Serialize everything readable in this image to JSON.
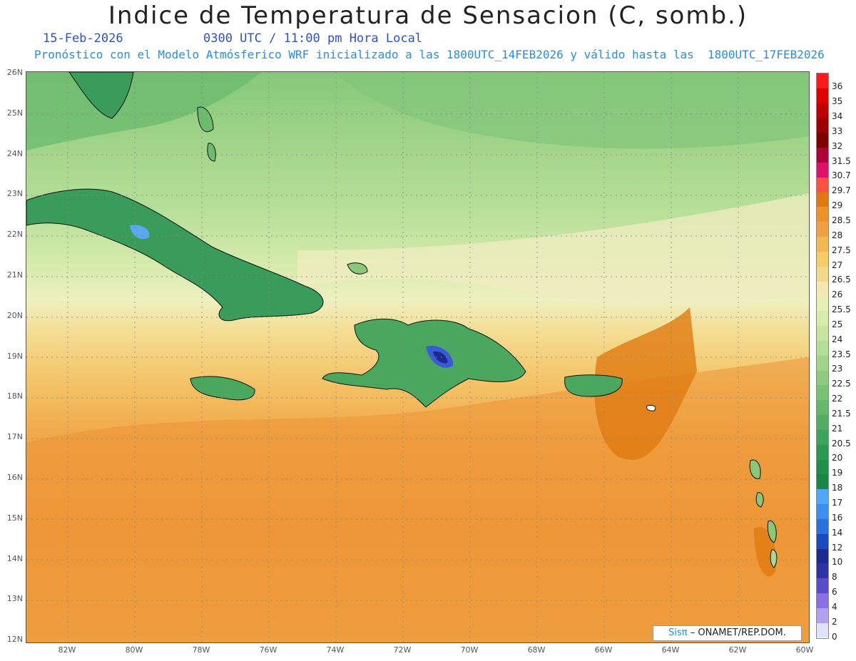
{
  "title": "Indice de Temperatura de Sensacion (C, somb.)",
  "date": "15-Feb-2026",
  "time_text": "0300 UTC / 11:00 pm Hora Local",
  "forecast_text": "Pronóstico con el Modelo Atmósferico WRF inicializado a las 1800UTC_14FEB2026 y válido hasta las  1800UTC_17FEB2026",
  "lat_labels": [
    "26N",
    "25N",
    "24N",
    "23N",
    "22N",
    "21N",
    "20N",
    "19N",
    "18N",
    "17N",
    "16N",
    "15N",
    "14N",
    "13N",
    "12N"
  ],
  "lon_labels": [
    "82W",
    "80W",
    "78W",
    "76W",
    "74W",
    "72W",
    "70W",
    "68W",
    "66W",
    "64W",
    "62W",
    "60W"
  ],
  "colorbar": {
    "labels": [
      "36",
      "35",
      "34",
      "33",
      "32",
      "31.5",
      "30.7",
      "29.7",
      "29",
      "28.5",
      "28",
      "27.5",
      "27",
      "26.5",
      "26",
      "25.5",
      "25",
      "24",
      "23.5",
      "23",
      "22.5",
      "22",
      "21.5",
      "21",
      "20.5",
      "20",
      "19",
      "18",
      "17",
      "16",
      "14",
      "12",
      "10",
      "8",
      "6",
      "4",
      "2",
      "0"
    ],
    "colors": [
      "#ff1a1a",
      "#e00000",
      "#c00000",
      "#a00000",
      "#800000",
      "#b0003a",
      "#e0106a",
      "#ff5040",
      "#e07a10",
      "#ee922a",
      "#f0a040",
      "#f4b850",
      "#f6cc68",
      "#f4d888",
      "#f2e8b0",
      "#e6f0b0",
      "#d8ecaa",
      "#c6e6a0",
      "#b4de94",
      "#a0d488",
      "#8ccc7e",
      "#78c274",
      "#64b86a",
      "#50ae62",
      "#3ca45a",
      "#2a9a52",
      "#1f904a",
      "#188644",
      "#4ea8ff",
      "#3a90f0",
      "#2a70e0",
      "#1a4ac0",
      "#1a2a90",
      "#3030a8",
      "#5a4acc",
      "#8a70e6",
      "#b0a0f4",
      "#e0e0ff"
    ]
  },
  "credit": {
    "brand": "Sisπ",
    "org": "– ONAMET/REP.DOM."
  }
}
